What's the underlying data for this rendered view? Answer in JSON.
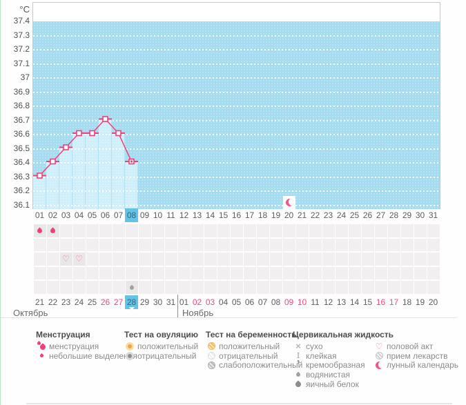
{
  "chart_data": {
    "type": "line",
    "ylabel": "°C",
    "y_ticks": [
      "37.4",
      "37.3",
      "37.2",
      "37.1",
      "37",
      "36.9",
      "36.8",
      "36.7",
      "36.6",
      "36.5",
      "36.4",
      "36.3",
      "36.2",
      "36.1"
    ],
    "ylim": [
      36.1,
      37.4
    ],
    "grid": "horizontal-dotted",
    "categories": [
      "01",
      "02",
      "03",
      "04",
      "05",
      "06",
      "07",
      "08",
      "09",
      "10",
      "11",
      "12",
      "13",
      "14",
      "15",
      "16",
      "17",
      "18",
      "19",
      "20",
      "21",
      "22",
      "23",
      "24",
      "25",
      "26",
      "27",
      "28",
      "29",
      "30",
      "31"
    ],
    "series": [
      {
        "name": "temperature",
        "points": [
          {
            "day": 1,
            "value": 36.3
          },
          {
            "day": 2,
            "value": 36.4
          },
          {
            "day": 3,
            "value": 36.5
          },
          {
            "day": 4,
            "value": 36.6
          },
          {
            "day": 5,
            "value": 36.6
          },
          {
            "day": 6,
            "value": 36.7
          },
          {
            "day": 7,
            "value": 36.6
          },
          {
            "day": 8,
            "value": 36.4,
            "today": true
          }
        ]
      }
    ],
    "events": [
      {
        "day": 20,
        "icon": "moon",
        "label": "лунный календарь"
      }
    ]
  },
  "calendar": {
    "cycle_days": [
      "01",
      "02",
      "03",
      "04",
      "05",
      "06",
      "07",
      "08",
      "09",
      "10",
      "11",
      "12",
      "13",
      "14",
      "15",
      "16",
      "17",
      "18",
      "19",
      "20",
      "21",
      "22",
      "23",
      "24",
      "25",
      "26",
      "27",
      "28",
      "29",
      "30",
      "31"
    ],
    "today_cycle_day": "08",
    "dates": [
      {
        "label": "21"
      },
      {
        "label": "22"
      },
      {
        "label": "23"
      },
      {
        "label": "24"
      },
      {
        "label": "25"
      },
      {
        "label": "26",
        "weekend": true
      },
      {
        "label": "27",
        "weekend": true
      },
      {
        "label": "28",
        "today": true
      },
      {
        "label": "29"
      },
      {
        "label": "30"
      },
      {
        "label": "31"
      },
      {
        "label": "01"
      },
      {
        "label": "02",
        "weekend": true
      },
      {
        "label": "03",
        "weekend": true
      },
      {
        "label": "04"
      },
      {
        "label": "05"
      },
      {
        "label": "06"
      },
      {
        "label": "07"
      },
      {
        "label": "08"
      },
      {
        "label": "09",
        "weekend": true
      },
      {
        "label": "10",
        "weekend": true
      },
      {
        "label": "11"
      },
      {
        "label": "12"
      },
      {
        "label": "13"
      },
      {
        "label": "14"
      },
      {
        "label": "15"
      },
      {
        "label": "16",
        "weekend": true
      },
      {
        "label": "17",
        "weekend": true
      },
      {
        "label": "18"
      },
      {
        "label": "19"
      },
      {
        "label": "20"
      }
    ],
    "month_split_index": 11,
    "months": [
      {
        "name": "Октябрь"
      },
      {
        "name": "Ноябрь"
      }
    ],
    "symptom_rows": [
      {
        "name": "menstruation",
        "cells": [
          {
            "day": "01",
            "icon": "drop-pink"
          },
          {
            "day": "02",
            "icon": "drop-pink"
          }
        ]
      },
      {
        "name": "ovulation-test",
        "cells": []
      },
      {
        "name": "intimacy",
        "cells": [
          {
            "day": "03",
            "icon": "heart"
          },
          {
            "day": "04",
            "icon": "heart"
          }
        ]
      },
      {
        "name": "medication",
        "cells": []
      },
      {
        "name": "cervical-fluid",
        "cells": [
          {
            "day": "08",
            "icon": "drop-gray-sm"
          }
        ]
      }
    ]
  },
  "legend": {
    "sections": [
      {
        "title": "Менструация",
        "items": [
          {
            "icon": "drops-double",
            "label": "менструация"
          },
          {
            "icon": "drop-pink-sm",
            "label": "небольшие выделения"
          }
        ]
      },
      {
        "title": "Тест на овуляцию",
        "items": [
          {
            "icon": "radio-amber",
            "label": "положительный"
          },
          {
            "icon": "radio-gray",
            "label": "отрицательный"
          }
        ]
      },
      {
        "title": "Тест на беременность",
        "items": [
          {
            "icon": "hatch-amber",
            "label": "положительный"
          },
          {
            "icon": "hatch-white",
            "label": "отрицательный"
          },
          {
            "icon": "hatch-gray",
            "label": "слабоположительный"
          }
        ]
      },
      {
        "title": "Цервикальная жидкость",
        "items": [
          {
            "icon": "cross",
            "label": "сухо"
          },
          {
            "icon": "ibeam",
            "label": "клейкая"
          },
          {
            "icon": "comma",
            "label": "кремообразная"
          },
          {
            "icon": "drop-gray-sm",
            "label": "водянистая"
          },
          {
            "icon": "drop-gray",
            "label": "яичный белок"
          }
        ]
      },
      {
        "title": "",
        "items": [
          {
            "icon": "heart",
            "label": "половой акт"
          },
          {
            "icon": "pill",
            "label": "прием лекарств"
          },
          {
            "icon": "moon",
            "label": "лунный календарь"
          }
        ]
      }
    ]
  },
  "colors": {
    "accent_pink": "#ee4079",
    "highlight_blue": "#63c3e7",
    "weekend_red": "#f2497c",
    "chart_bg": "#a5dbf0",
    "bar_fill": "#cdeefa"
  }
}
